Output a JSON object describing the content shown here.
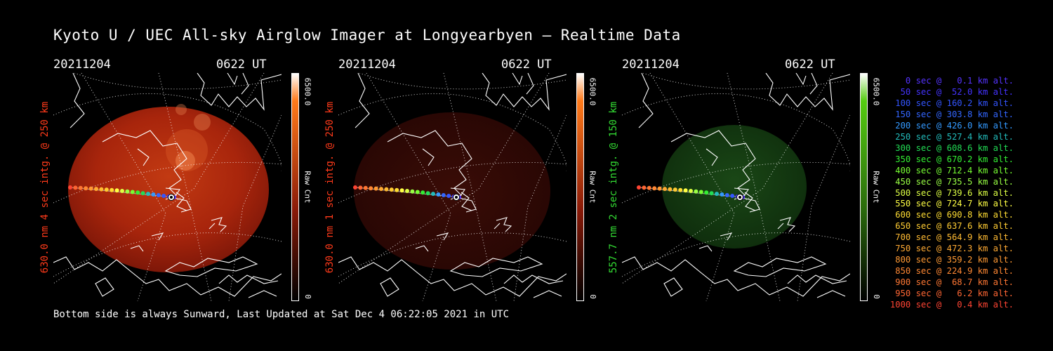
{
  "title": "Kyoto U / UEC All-sky Airglow Imager at Longyearbyen — Realtime Data",
  "footer": "Bottom side is always Sunward, Last Updated at Sat Dec  4 06:22:05 2021 in UTC",
  "panels": [
    {
      "date": "20211204",
      "time": "0622 UT",
      "ylabel": "630.0 nm 4 sec intg. @ 250 km",
      "ylabel_color": "#ff3a1a",
      "cbar_max": "6500.0",
      "cbar_min": "0",
      "cbar_unit": "Raw Cnt",
      "cbar_top_color": "#ff7a1a",
      "glow": "red-bright"
    },
    {
      "date": "20211204",
      "time": "0622 UT",
      "ylabel": "630.0 nm 1 sec intg. @ 250 km",
      "ylabel_color": "#ff3a1a",
      "cbar_max": "6500.0",
      "cbar_min": "0",
      "cbar_unit": "Raw Cnt",
      "cbar_top_color": "#ff7a1a",
      "glow": "red-dim"
    },
    {
      "date": "20211204",
      "time": "0622 UT",
      "ylabel": "557.7 nm 2 sec intg. @ 150 km",
      "ylabel_color": "#33dd33",
      "cbar_max": "6500.0",
      "cbar_min": "0",
      "cbar_unit": "Raw Cnt",
      "cbar_top_color": "#55cc11",
      "glow": "green-dim"
    }
  ],
  "legend": [
    {
      "text": "0 sec @   0.1 km alt.",
      "color": "#5533ff"
    },
    {
      "text": "50 sec @  52.0 km alt.",
      "color": "#4433ff"
    },
    {
      "text": "100 sec @ 160.2 km alt.",
      "color": "#3355ff"
    },
    {
      "text": "150 sec @ 303.8 km alt.",
      "color": "#3366ff"
    },
    {
      "text": "200 sec @ 426.0 km alt.",
      "color": "#3399ff"
    },
    {
      "text": "250 sec @ 527.4 km alt.",
      "color": "#22bbbb"
    },
    {
      "text": "300 sec @ 608.6 km alt.",
      "color": "#22dd55"
    },
    {
      "text": "350 sec @ 670.2 km alt.",
      "color": "#33ee33"
    },
    {
      "text": "400 sec @ 712.4 km alt.",
      "color": "#77ff33"
    },
    {
      "text": "450 sec @ 735.5 km alt.",
      "color": "#99ff44"
    },
    {
      "text": "500 sec @ 739.6 km alt.",
      "color": "#ddff44"
    },
    {
      "text": "550 sec @ 724.7 km alt.",
      "color": "#ffff44"
    },
    {
      "text": "600 sec @ 690.8 km alt.",
      "color": "#ffdd33"
    },
    {
      "text": "650 sec @ 637.6 km alt.",
      "color": "#ffcc33"
    },
    {
      "text": "700 sec @ 564.9 km alt.",
      "color": "#ffbb33"
    },
    {
      "text": "750 sec @ 472.3 km alt.",
      "color": "#ffaa33"
    },
    {
      "text": "800 sec @ 359.2 km alt.",
      "color": "#ff9933"
    },
    {
      "text": "850 sec @ 224.9 km alt.",
      "color": "#ff8833"
    },
    {
      "text": "900 sec @  68.7 km alt.",
      "color": "#ff7733"
    },
    {
      "text": "950 sec @   6.2 km alt.",
      "color": "#ff6633"
    },
    {
      "text": "1000 sec @   0.4 km alt.",
      "color": "#ff4433"
    }
  ]
}
